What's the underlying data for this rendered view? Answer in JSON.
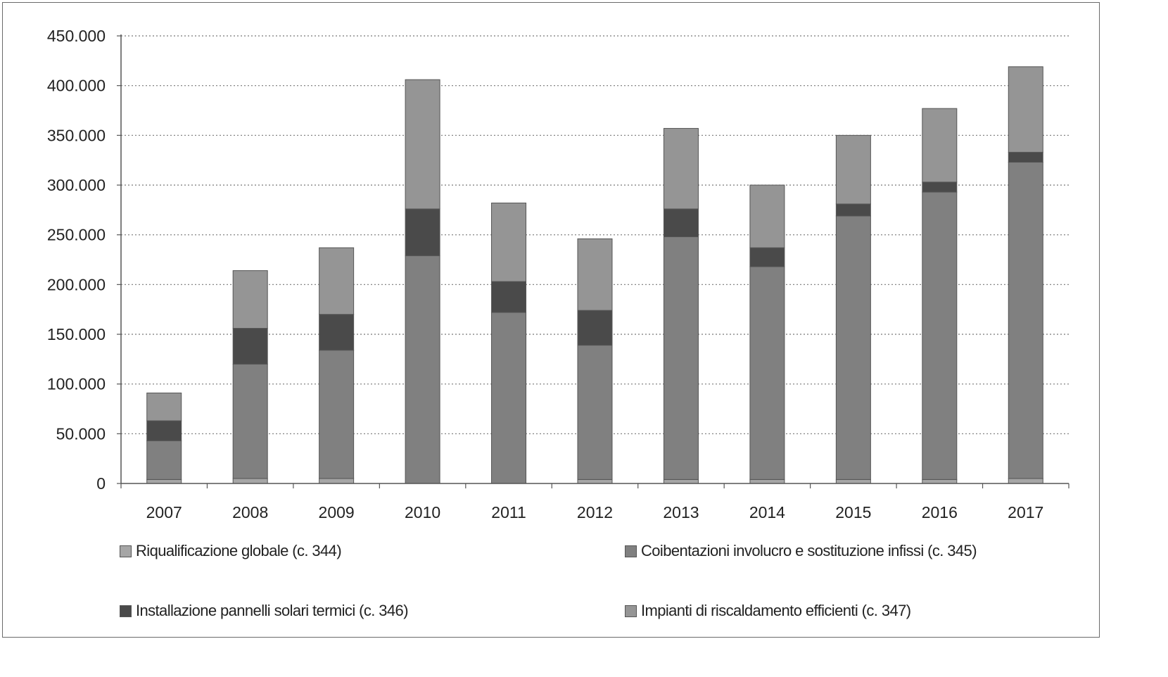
{
  "chart_data": {
    "type": "bar",
    "stacked": true,
    "categories": [
      "2007",
      "2008",
      "2009",
      "2010",
      "2011",
      "2012",
      "2013",
      "2014",
      "2015",
      "2016",
      "2017"
    ],
    "series": [
      {
        "name": "Riqualificazione globale (c. 344)",
        "color": "#a6a6a6",
        "values": [
          4000,
          5000,
          5000,
          0,
          0,
          4000,
          4000,
          4000,
          4000,
          4000,
          5000
        ]
      },
      {
        "name": "Coibentazioni involucro e sostituzione infissi (c. 345)",
        "color": "#808080",
        "values": [
          39000,
          115000,
          129000,
          229000,
          172000,
          135000,
          244000,
          214000,
          265000,
          289000,
          318000
        ]
      },
      {
        "name": "Installazione pannelli solari termici (c. 346)",
        "color": "#4a4a4a",
        "values": [
          20000,
          36000,
          36000,
          47000,
          31000,
          35000,
          28000,
          19000,
          12000,
          10000,
          10000
        ]
      },
      {
        "name": "Impianti di riscaldamento efficienti (c. 347)",
        "color": "#959595",
        "values": [
          28000,
          58000,
          67000,
          130000,
          79000,
          72000,
          81000,
          63000,
          69000,
          74000,
          86000
        ]
      }
    ],
    "yticks": [
      "0",
      "50.000",
      "100.000",
      "150.000",
      "200.000",
      "250.000",
      "300.000",
      "350.000",
      "400.000",
      "450.000"
    ],
    "ylim": [
      0,
      450000
    ],
    "grid": true,
    "legend_position": "bottom"
  }
}
